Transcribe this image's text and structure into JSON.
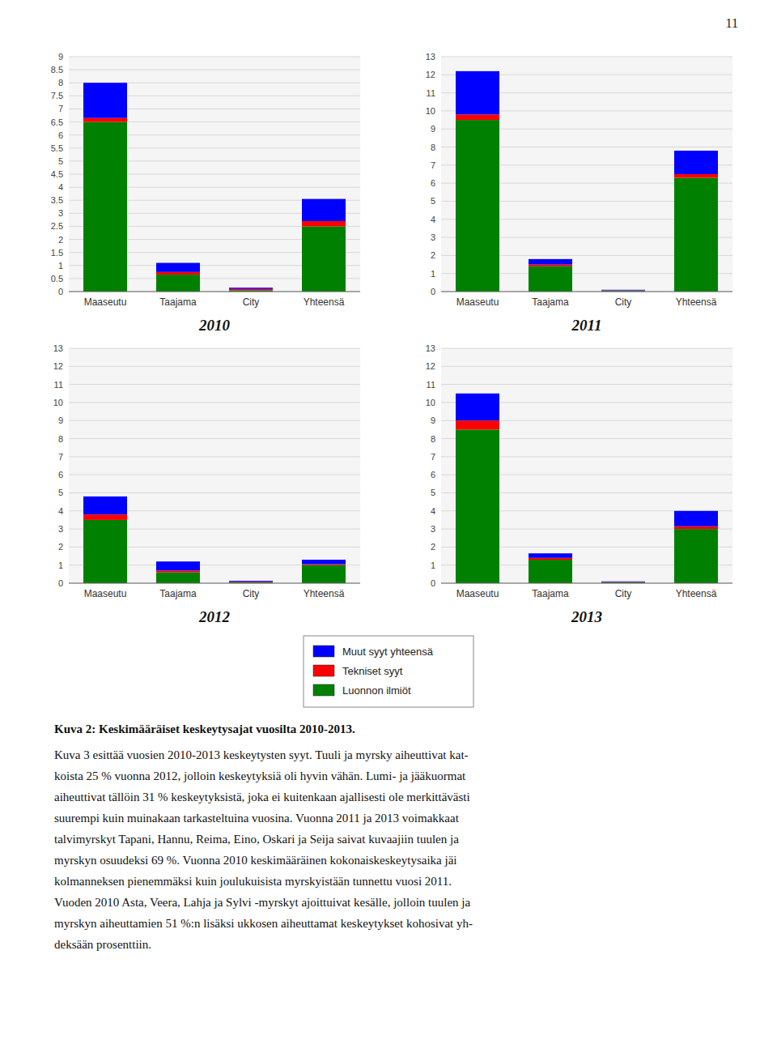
{
  "chart_data": [
    {
      "type": "bar",
      "stacked": true,
      "title": "2010",
      "grid": true,
      "legend": "bottom",
      "categories": [
        "Maaseutu",
        "Taajama",
        "City",
        "Yhteensä"
      ],
      "series": [
        {
          "name": "Luonnon ilmiöt",
          "color": "#008000",
          "values": [
            6.5,
            0.65,
            0.05,
            2.5
          ]
        },
        {
          "name": "Tekniset syyt",
          "color": "#FF0000",
          "values": [
            0.15,
            0.1,
            0.05,
            0.2
          ]
        },
        {
          "name": "Muut syyt yhteensä",
          "color": "#0000FF",
          "values": [
            1.35,
            0.35,
            0.05,
            0.85
          ]
        }
      ],
      "ylim": [
        0,
        9
      ],
      "yticks": [
        0,
        0.5,
        1,
        1.5,
        2,
        2.5,
        3,
        3.5,
        4,
        4.5,
        5,
        5.5,
        6,
        6.5,
        7,
        7.5,
        8,
        8.5,
        9
      ]
    },
    {
      "type": "bar",
      "stacked": true,
      "title": "2011",
      "grid": true,
      "categories": [
        "Maaseutu",
        "Taajama",
        "City",
        "Yhteensä"
      ],
      "series": [
        {
          "color": "#008000",
          "values": [
            9.5,
            1.4,
            0.05,
            6.3
          ]
        },
        {
          "color": "#FF0000",
          "values": [
            0.3,
            0.1,
            0.02,
            0.2
          ]
        },
        {
          "color": "#0000FF",
          "values": [
            2.4,
            0.3,
            0.03,
            1.3
          ]
        }
      ],
      "ylim": [
        0,
        13
      ],
      "yticks": [
        0,
        1,
        2,
        3,
        4,
        5,
        6,
        7,
        8,
        9,
        10,
        11,
        12,
        13
      ]
    },
    {
      "type": "bar",
      "stacked": true,
      "title": "2012",
      "grid": true,
      "categories": [
        "Maaseutu",
        "Taajama",
        "City",
        "Yhteensä"
      ],
      "series": [
        {
          "color": "#008000",
          "values": [
            3.5,
            0.6,
            0.05,
            1.0
          ]
        },
        {
          "color": "#FF0000",
          "values": [
            0.3,
            0.1,
            0.03,
            0.05
          ]
        },
        {
          "color": "#0000FF",
          "values": [
            1.0,
            0.5,
            0.05,
            0.25
          ]
        }
      ],
      "ylim": [
        0,
        13
      ],
      "yticks": [
        0,
        1,
        2,
        3,
        4,
        5,
        6,
        7,
        8,
        9,
        10,
        11,
        12,
        13
      ]
    },
    {
      "type": "bar",
      "stacked": true,
      "title": "2013",
      "grid": true,
      "categories": [
        "Maaseutu",
        "Taajama",
        "City",
        "Yhteensä"
      ],
      "series": [
        {
          "color": "#008000",
          "values": [
            8.5,
            1.3,
            0.05,
            3.0
          ]
        },
        {
          "color": "#FF0000",
          "values": [
            0.5,
            0.1,
            0.02,
            0.15
          ]
        },
        {
          "color": "#0000FF",
          "values": [
            1.5,
            0.25,
            0.03,
            0.85
          ]
        }
      ],
      "ylim": [
        0,
        13
      ],
      "yticks": [
        0,
        1,
        2,
        3,
        4,
        5,
        6,
        7,
        8,
        9,
        10,
        11,
        12,
        13
      ]
    }
  ],
  "page_number": "11",
  "caption": "Kuva 2: Keskimääräiset keskeytysajat vuosilta 2010-2013.",
  "body_text": [
    "Kuva 3 esittää vuosien 2010-2013 keskeytysten syyt. Tuuli ja myrsky aiheuttivat kat-",
    "koista 25 % vuonna 2012, jolloin keskeytyksiä oli hyvin vähän. Lumi- ja jääkuormat",
    "aiheuttivat tällöin 31 % keskeytyksistä, joka ei kuitenkaan ajallisesti ole merkittävästi",
    "suurempi kuin muinakaan tarkasteltuina vuosina. Vuonna 2011 ja 2013 voimakkaat",
    "talvimyrskyt Tapani, Hannu, Reima, Eino, Oskari ja Seija saivat kuvaajiin tuulen ja",
    "myrskyn osuudeksi 69 %. Vuonna 2010 keskimääräinen kokonaiskeskeytysaika jäi",
    "kolmanneksen pienemmäksi kuin joulukuisista myrskyistään tunnettu vuosi 2011.",
    "Vuoden 2010 Asta, Veera, Lahja ja Sylvi -myrskyt ajoittuivat kesälle, jolloin tuulen ja",
    "myrskyn aiheuttamien 51 %:n lisäksi ukkosen aiheuttamat keskeytykset kohosivat yh-",
    "deksään prosenttiin."
  ]
}
